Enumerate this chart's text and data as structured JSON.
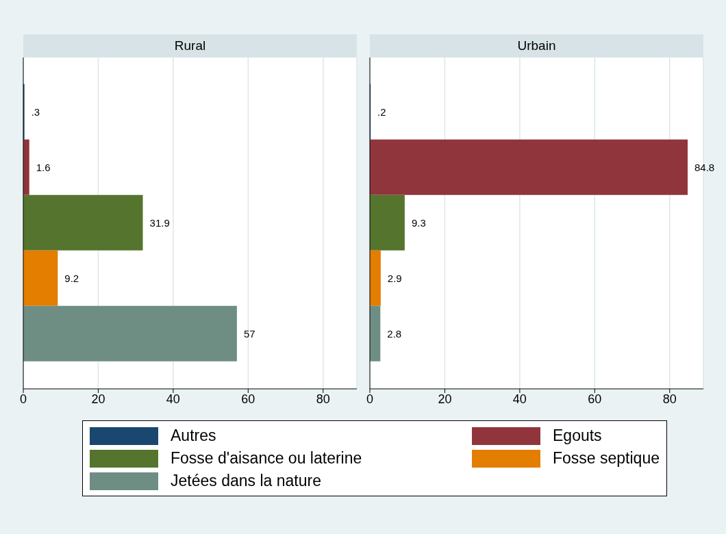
{
  "chart_data": [
    {
      "type": "bar",
      "orientation": "horizontal",
      "title": "Rural",
      "categories": [
        null
      ],
      "xlim": [
        0,
        89
      ],
      "xticks": [
        0,
        20,
        40,
        60,
        80
      ],
      "grid": "x",
      "tick_labels": "x",
      "legend": "bottom",
      "series": [
        {
          "name": "Autres",
          "color": "#1a476f",
          "values": [
            0.3
          ],
          "value_labels": [
            ".3"
          ]
        },
        {
          "name": "Egouts",
          "color": "#90353b",
          "values": [
            1.6
          ],
          "value_labels": [
            "1.6"
          ]
        },
        {
          "name": "Fosse d'aisance ou laterine",
          "color": "#55752f",
          "values": [
            31.9
          ],
          "value_labels": [
            "31.9"
          ]
        },
        {
          "name": "Fosse septique",
          "color": "#e37e00",
          "values": [
            9.2
          ],
          "value_labels": [
            "9.2"
          ]
        },
        {
          "name": "Jetées dans la nature",
          "color": "#6e8e84",
          "values": [
            57
          ],
          "value_labels": [
            "57"
          ]
        }
      ]
    },
    {
      "type": "bar",
      "orientation": "horizontal",
      "title": "Urbain",
      "categories": [
        null
      ],
      "xlim": [
        0,
        89
      ],
      "xticks": [
        0,
        20,
        40,
        60,
        80
      ],
      "grid": "x",
      "tick_labels": "x",
      "series": [
        {
          "color": "#1a476f",
          "values": [
            0.2
          ],
          "value_labels": [
            ".2"
          ]
        },
        {
          "color": "#90353b",
          "values": [
            84.8
          ],
          "value_labels": [
            "84.8"
          ]
        },
        {
          "color": "#55752f",
          "values": [
            9.3
          ],
          "value_labels": [
            "9.3"
          ]
        },
        {
          "color": "#e37e00",
          "values": [
            2.9
          ],
          "value_labels": [
            "2.9"
          ]
        },
        {
          "color": "#6e8e84",
          "values": [
            2.8
          ],
          "value_labels": [
            "2.8"
          ]
        }
      ]
    }
  ]
}
